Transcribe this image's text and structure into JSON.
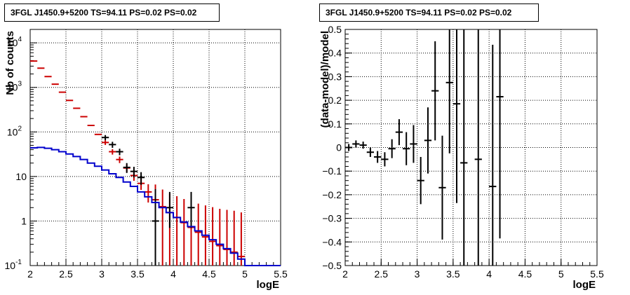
{
  "chart_data": [
    {
      "type": "line",
      "title": "3FGL J1450.9+5200 TS=94.11 PS=0.02 PS=0.02",
      "xlabel": "logE",
      "ylabel": "Nb of counts",
      "xlim": [
        2,
        5.5
      ],
      "ylim": [
        0.1,
        20000
      ],
      "yscale": "log",
      "grid": true,
      "x_ticks": [
        "2",
        "2.5",
        "3",
        "3.5",
        "4",
        "4.5",
        "5",
        "5.5"
      ],
      "y_ticks": [
        {
          "value": 0.1,
          "label": "10",
          "exp": "-1"
        },
        {
          "value": 1,
          "label": "1",
          "exp": ""
        },
        {
          "value": 10,
          "label": "10",
          "exp": ""
        },
        {
          "value": 100,
          "label": "10",
          "exp": "2"
        },
        {
          "value": 1000,
          "label": "10",
          "exp": "3"
        },
        {
          "value": 10000,
          "label": "10",
          "exp": "4"
        }
      ],
      "series": [
        {
          "color": "#cc0000",
          "kind": "points",
          "x": [
            2.05,
            2.15,
            2.25,
            2.35,
            2.45,
            2.55,
            2.65,
            2.75,
            2.85,
            2.95,
            3.05,
            3.15,
            3.25,
            3.35,
            3.45,
            3.55,
            3.65,
            3.75,
            3.85,
            3.95,
            4.05,
            4.15,
            4.25,
            4.35,
            4.45,
            4.55,
            4.65,
            4.75,
            4.85,
            4.95
          ],
          "values": [
            3900,
            2700,
            1750,
            1180,
            780,
            510,
            340,
            220,
            140,
            88,
            58,
            36,
            24,
            15.5,
            10.5,
            7.0,
            4.5,
            3.0,
            2.1,
            1.55,
            1.2,
            0.92,
            0.72,
            0.56,
            0.44,
            0.35,
            0.28,
            0.23,
            0.2,
            0.16
          ],
          "err_low": [
            0,
            0,
            0,
            0,
            0,
            0,
            0,
            0,
            0,
            0,
            7,
            5,
            4,
            3,
            2.5,
            2.0,
            1.9,
            2.85,
            2.0,
            1.47,
            1.14,
            0.87,
            0.68,
            0.53,
            0.42,
            0.34,
            0.27,
            0.22,
            0.19,
            0.15
          ],
          "err_high": [
            0,
            0,
            0,
            0,
            0,
            0,
            0,
            0,
            0,
            0,
            7,
            5,
            4,
            3,
            3.2,
            2.6,
            2.2,
            3.6,
            3.0,
            2.6,
            2.4,
            2.2,
            2.0,
            1.9,
            1.8,
            1.7,
            1.6,
            1.55,
            1.5,
            1.4
          ]
        },
        {
          "color": "#000000",
          "kind": "points",
          "x": [
            3.05,
            3.15,
            3.25,
            3.35,
            3.45,
            3.55,
            3.75,
            3.95,
            4.25
          ],
          "values": [
            75,
            52,
            36,
            16,
            13,
            9.5,
            1,
            2,
            2
          ],
          "err_low": [
            10,
            8,
            6,
            4,
            3.5,
            3,
            0.9,
            1.3,
            1.3
          ],
          "err_high": [
            10,
            8,
            6,
            4,
            3.5,
            3,
            4.2,
            2.5,
            2.5
          ]
        },
        {
          "color": "#0000cc",
          "kind": "step",
          "x_edges": [
            2.0,
            2.1,
            2.2,
            2.3,
            2.4,
            2.5,
            2.6,
            2.7,
            2.8,
            2.9,
            3.0,
            3.1,
            3.2,
            3.3,
            3.4,
            3.5,
            3.6,
            3.7,
            3.8,
            3.9,
            4.0,
            4.1,
            4.2,
            4.3,
            4.4,
            4.5,
            4.6,
            4.7,
            4.8,
            4.9,
            5.0,
            5.1,
            5.2,
            5.3,
            5.4,
            5.5
          ],
          "values": [
            44,
            45,
            43,
            40,
            36,
            32,
            28,
            24,
            20,
            17,
            14,
            11.5,
            9.5,
            7.5,
            6,
            4.5,
            3.5,
            2.6,
            2,
            1.55,
            1.2,
            0.95,
            0.75,
            0.6,
            0.48,
            0.38,
            0.3,
            0.24,
            0.19,
            0.14,
            0.1,
            0.1,
            0.1,
            0.1,
            0.1
          ]
        }
      ]
    },
    {
      "type": "scatter",
      "title": "3FGL J1450.9+5200 TS=94.11 PS=0.02 PS=0.02",
      "xlabel": "logE",
      "ylabel": "(data-model)/model",
      "xlim": [
        2,
        5.5
      ],
      "ylim": [
        -0.5,
        0.5
      ],
      "grid": true,
      "x_ticks": [
        "2",
        "2.5",
        "3",
        "3.5",
        "4",
        "4.5",
        "5",
        "5.5"
      ],
      "y_ticks": [
        "−0.5",
        "−0.4",
        "−0.3",
        "−0.2",
        "−0.1",
        "0",
        "0.1",
        "0.2",
        "0.3",
        "0.4",
        "0.5"
      ],
      "series": [
        {
          "color": "#000000",
          "kind": "points",
          "x": [
            2.05,
            2.15,
            2.25,
            2.35,
            2.45,
            2.55,
            2.65,
            2.75,
            2.85,
            2.95,
            3.05,
            3.15,
            3.25,
            3.35,
            3.45,
            3.55,
            3.65,
            3.85,
            4.05,
            4.15
          ],
          "values": [
            0.0,
            0.015,
            0.01,
            -0.02,
            -0.04,
            -0.05,
            -0.005,
            0.065,
            -0.005,
            0.015,
            -0.14,
            0.03,
            0.24,
            -0.17,
            0.275,
            0.185,
            -0.065,
            -0.05,
            -0.165,
            0.215
          ],
          "err": [
            0.015,
            0.015,
            0.015,
            0.02,
            0.025,
            0.03,
            0.04,
            0.055,
            0.07,
            0.08,
            0.1,
            0.14,
            0.21,
            0.22,
            0.3,
            0.42,
            0.6,
            0.6,
            0.6,
            0.6
          ]
        }
      ]
    }
  ]
}
